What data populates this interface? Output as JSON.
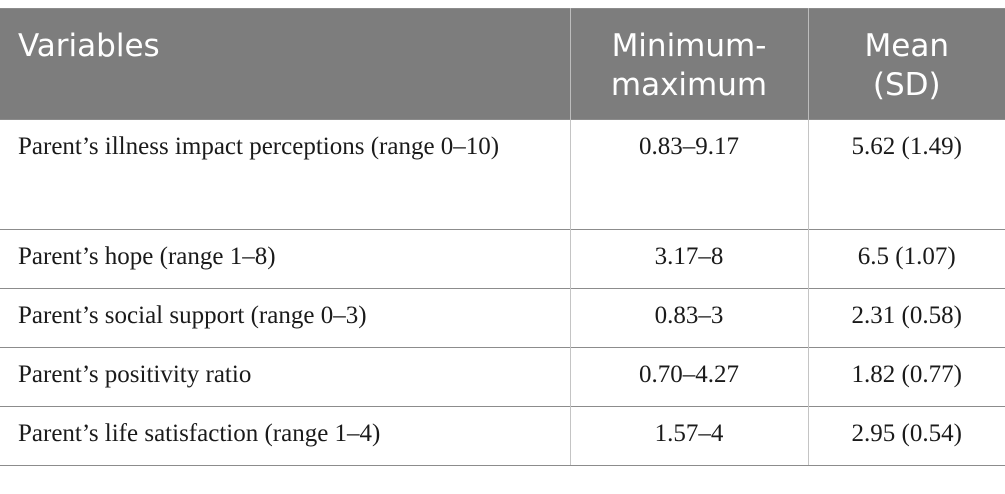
{
  "table": {
    "headers": [
      "Variables",
      "Minimum-maximum",
      "Mean (SD)"
    ],
    "header_lines": {
      "col2": [
        "Minimum-",
        "maximum"
      ],
      "col3": [
        "Mean",
        "(SD)"
      ]
    },
    "rows": [
      {
        "variable": "Parent’s illness impact perceptions (range 0–10)",
        "range": "0.83–9.17",
        "mean_sd": "5.62 (1.49)"
      },
      {
        "variable": "Parent’s hope (range 1–8)",
        "range": "3.17–8",
        "mean_sd": "6.5 (1.07)"
      },
      {
        "variable": "Parent’s social support (range 0–3)",
        "range": "0.83–3",
        "mean_sd": "2.31 (0.58)"
      },
      {
        "variable": "Parent’s positivity ratio",
        "range": "0.70–4.27",
        "mean_sd": "1.82 (0.77)"
      },
      {
        "variable": "Parent’s life satisfaction (range 1–4)",
        "range": "1.57–4",
        "mean_sd": "2.95 (0.54)"
      }
    ],
    "colors": {
      "header_bg": "#7d7d7d",
      "header_text": "#ffffff",
      "body_text": "#1a1a1a",
      "rule": "#8c8c8c"
    }
  }
}
